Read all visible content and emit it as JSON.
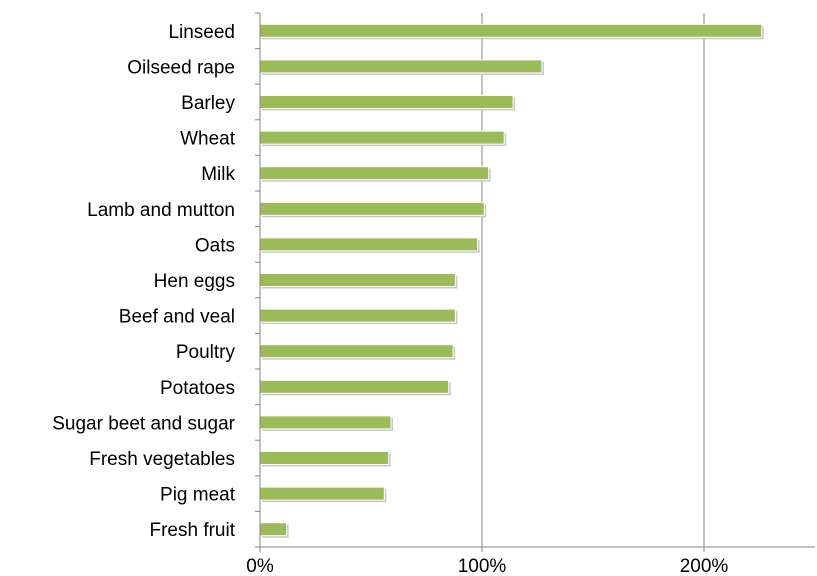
{
  "chart_data": {
    "type": "bar",
    "orientation": "horizontal",
    "categories": [
      "Linseed",
      "Oilseed rape",
      "Barley",
      "Wheat",
      "Milk",
      "Lamb and mutton",
      "Oats",
      "Hen eggs",
      "Beef and veal",
      "Poultry",
      "Potatoes",
      "Sugar beet and sugar",
      "Fresh vegetables",
      "Pig meat",
      "Fresh fruit"
    ],
    "values": [
      226,
      127,
      114,
      110,
      103,
      101,
      98,
      88,
      88,
      87,
      85,
      59,
      58,
      56,
      12
    ],
    "xlim": [
      0,
      250
    ],
    "x_ticks": [
      0,
      100,
      200
    ],
    "x_tick_labels": [
      "0%",
      "100%",
      "200%"
    ],
    "grid": "vertical",
    "legend": "none",
    "colors": {
      "bar": "#9bbb59",
      "grid": "#868686",
      "axis": "#868686"
    }
  }
}
